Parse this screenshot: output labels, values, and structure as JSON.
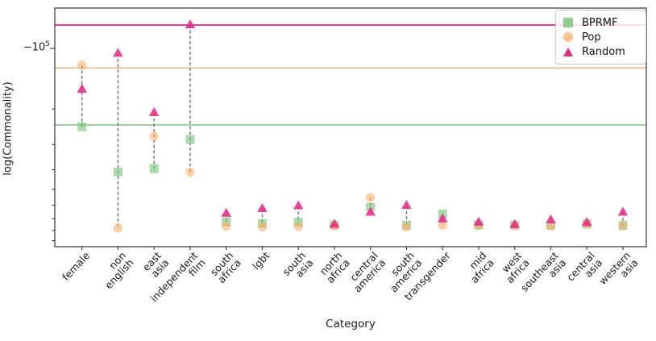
{
  "figure": {
    "xlabel": "Category",
    "ylabel": "log(Commonality)",
    "y_tick": {
      "base": "−10",
      "exp": "5"
    }
  },
  "chart_data": {
    "type": "scatter",
    "title": "",
    "xlabel": "Category",
    "ylabel": "log(Commonality)",
    "y_scale": "negative-log",
    "ylim": [
      -963000,
      -63000
    ],
    "grid": false,
    "legend_position": "upper right",
    "y_tick_labels": [
      "−10⁵"
    ],
    "categories": [
      "female",
      "non english",
      "east asia",
      "independent film",
      "south africa",
      "lgbt",
      "south asia",
      "north africa",
      "central america",
      "south america",
      "transgender",
      "mid africa",
      "west africa",
      "southeast asia",
      "central asia",
      "western asia"
    ],
    "tick_labels": [
      "female",
      "non\nenglish",
      "east\nasia",
      "independent\nfilm",
      "south\nafrica",
      "lgbt",
      "south\nasia",
      "north\nafrica",
      "central\namerica",
      "south\namerica",
      "transgender",
      "mid\nafrica",
      "west\nafrica",
      "southeast\nasia",
      "central\nasia",
      "western\nasia"
    ],
    "series": [
      {
        "name": "BPRMF",
        "marker": "square",
        "color": "#74c476",
        "opacity": 0.62,
        "values": [
          -245000,
          -410000,
          -395000,
          -283000,
          -725000,
          -741000,
          -730000,
          -754000,
          -613000,
          -754000,
          -665000,
          -750000,
          -754000,
          -756000,
          -743000,
          -756000
        ]
      },
      {
        "name": "Pop",
        "marker": "circle",
        "color": "#fdae6b",
        "opacity": 0.6,
        "values": [
          -121000,
          -780000,
          -273000,
          -411000,
          -762000,
          -768000,
          -765000,
          -758000,
          -549000,
          -771000,
          -754000,
          -758000,
          -756000,
          -760000,
          -745000,
          -760000
        ]
      },
      {
        "name": "Random",
        "marker": "triangle-up",
        "color": "#e7298a",
        "opacity": 0.88,
        "values": [
          -160000,
          -106000,
          -209000,
          -76600,
          -660000,
          -625000,
          -606000,
          -747000,
          -652000,
          -603000,
          -703000,
          -730000,
          -750000,
          -710000,
          -733000,
          -652000
        ]
      }
    ],
    "reference_lines": [
      {
        "series": "Random",
        "value": -76600,
        "color": "#ea2f90"
      },
      {
        "series": "Pop",
        "value": -125000,
        "color": "#f9be85"
      },
      {
        "series": "BPRMF",
        "value": -240000,
        "color": "#95d095"
      }
    ],
    "connectors": "dashed vertical line per category spanning min to max marker"
  }
}
